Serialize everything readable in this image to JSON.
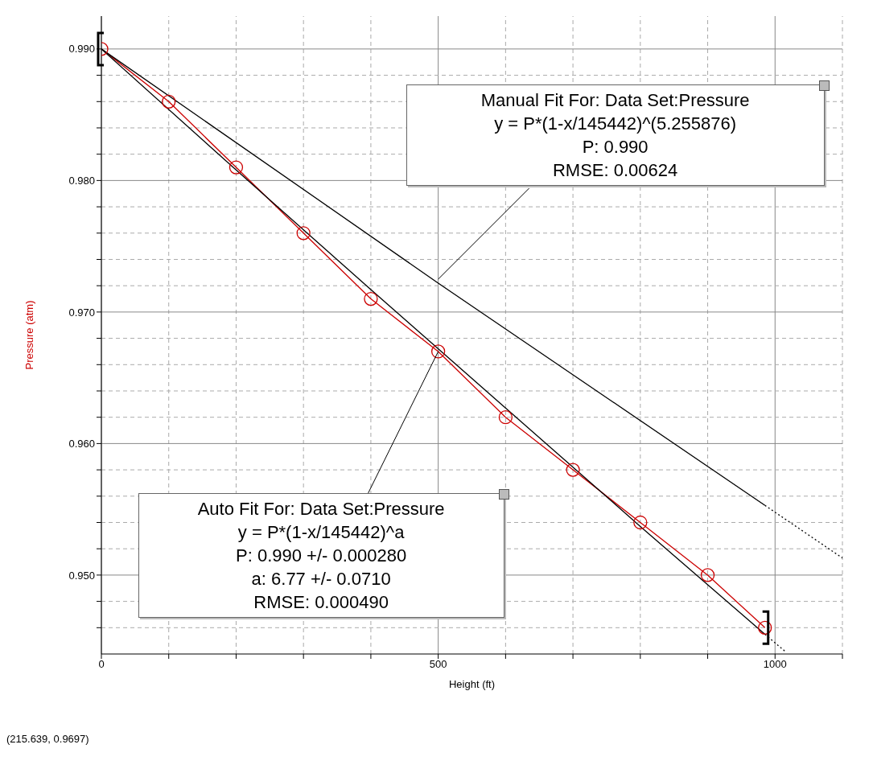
{
  "chart_data": {
    "type": "line",
    "xlabel": "Height (ft)",
    "ylabel": "Pressure (atm)",
    "xlim": [
      0,
      1100
    ],
    "xticks": [
      0,
      {
        "value": 100,
        "label": null
      },
      {
        "value": 200,
        "label": null
      },
      {
        "value": 300,
        "label": null
      },
      {
        "value": 400,
        "label": null
      },
      500,
      {
        "value": 600,
        "label": null
      },
      {
        "value": 700,
        "label": null
      },
      {
        "value": 800,
        "label": null
      },
      {
        "value": 900,
        "label": null
      },
      1000,
      {
        "value": 1100,
        "label": null
      }
    ],
    "ylim": [
      0.944,
      0.9925
    ],
    "yticks": [
      {
        "value": 0.946,
        "label": null
      },
      {
        "value": 0.948,
        "label": null
      },
      {
        "value": 0.95,
        "label": "0.950"
      },
      {
        "value": 0.952,
        "label": null
      },
      {
        "value": 0.954,
        "label": null
      },
      {
        "value": 0.956,
        "label": null
      },
      {
        "value": 0.958,
        "label": null
      },
      {
        "value": 0.96,
        "label": "0.960"
      },
      {
        "value": 0.962,
        "label": null
      },
      {
        "value": 0.964,
        "label": null
      },
      {
        "value": 0.966,
        "label": null
      },
      {
        "value": 0.968,
        "label": null
      },
      {
        "value": 0.97,
        "label": "0.970"
      },
      {
        "value": 0.972,
        "label": null
      },
      {
        "value": 0.974,
        "label": null
      },
      {
        "value": 0.976,
        "label": null
      },
      {
        "value": 0.978,
        "label": null
      },
      {
        "value": 0.98,
        "label": "0.980"
      },
      {
        "value": 0.982,
        "label": null
      },
      {
        "value": 0.984,
        "label": null
      },
      {
        "value": 0.986,
        "label": null
      },
      {
        "value": 0.988,
        "label": null
      },
      {
        "value": 0.99,
        "label": "0.990"
      }
    ],
    "grid": true,
    "series": [
      {
        "color": "#cc0000",
        "marker": "circle",
        "line_style": "solid",
        "x": [
          0,
          100,
          200,
          300,
          400,
          500,
          600,
          700,
          800,
          900,
          985
        ],
        "values": [
          0.99,
          0.986,
          0.981,
          0.976,
          0.971,
          0.967,
          0.962,
          0.958,
          0.954,
          0.95,
          0.946
        ]
      },
      {
        "color": "#000000",
        "marker": "none",
        "line_style": "solid",
        "x": [
          0,
          200,
          400,
          600,
          800,
          985
        ],
        "values": [
          0.99,
          0.9808,
          0.9717,
          0.9627,
          0.9537,
          0.9455
        ]
      },
      {
        "color": "#000000",
        "marker": "none",
        "line_style": "dotted",
        "x": [
          985,
          1015
        ],
        "values": [
          0.9455,
          0.9442
        ]
      },
      {
        "color": "#000000",
        "marker": "none",
        "line_style": "solid",
        "x": [
          0,
          500,
          985
        ],
        "values": [
          0.99,
          0.9722,
          0.9553
        ]
      },
      {
        "color": "#000000",
        "marker": "none",
        "line_style": "dotted",
        "x": [
          985,
          1100
        ],
        "values": [
          0.9553,
          0.9513
        ]
      }
    ],
    "annotations": [
      {
        "text": "Manual Fit For:  Data Set:Pressure\ny = P*(1-x/145442)^(5.255876)\nP: 0.990\nRMSE: 0.00624",
        "x": 500,
        "y": 0.9725
      },
      {
        "text": "Auto Fit For:  Data Set:Pressure\ny = P*(1-x/145442)^a\nP: 0.990 +/- 0.000280\na: 6.77 +/- 0.0710\nRMSE: 0.000490",
        "x": 500,
        "y": 0.967
      },
      "(215.639, 0.9697)"
    ]
  }
}
